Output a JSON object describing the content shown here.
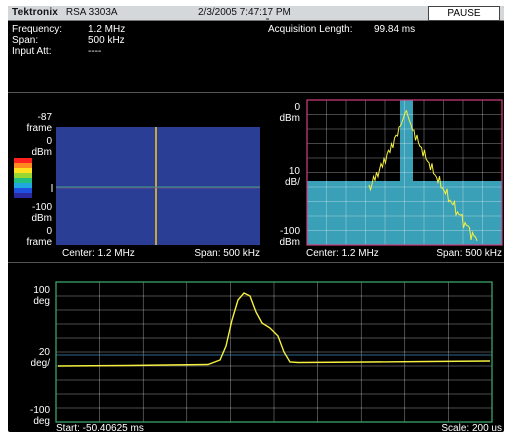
{
  "header": {
    "brand": "Tektronix",
    "model": "RSA 3303A",
    "datetime": "2/3/2005 7:47:17 PM",
    "pause_label": "PAUSE"
  },
  "info": {
    "frequency_label": "Frequency:",
    "frequency_value": "1.2 MHz",
    "span_label": "Span:",
    "span_value": "500 kHz",
    "input_att_label": "Input Att:",
    "input_att_value": "----",
    "acq_label": "Acquisition Length:",
    "acq_value": "99.84 ms"
  },
  "spectrogram": {
    "y_top_value": "-87",
    "y_top_unit": "frame",
    "scale_top_value": "0",
    "scale_top_unit": "dBm",
    "scale_bottom_value": "-100",
    "scale_bottom_unit": "dBm",
    "y_bottom_value": "0",
    "y_bottom_unit": "frame",
    "center_label": "Center: 1.2 MHz",
    "span_label": "Span: 500 kHz",
    "colors": {
      "background": "#2b3e96",
      "trace_vertical": "#c8a636",
      "trace_horizontal": "#3fa089"
    },
    "colorbar": [
      "#ff2020",
      "#ff8a20",
      "#ffe020",
      "#9ad630",
      "#20c080",
      "#20a8e0",
      "#2050e0",
      "#2a2aa0"
    ]
  },
  "spectrum": {
    "y_top_value": "0",
    "y_top_unit": "dBm",
    "div_value": "10",
    "div_unit": "dB/",
    "y_bottom_value": "-100",
    "y_bottom_unit": "dBm",
    "center_label": "Center: 1.2 MHz",
    "span_label": "Span: 500 kHz",
    "colors": {
      "frame": "#d04080",
      "fill": "#3aa0b8",
      "trace": "#f5f040"
    }
  },
  "phase": {
    "y_top_value": "100",
    "y_top_unit": "deg",
    "div_value": "20",
    "div_unit": "deg/",
    "y_bottom_value": "-100",
    "y_bottom_unit": "deg",
    "start_label": "Start: -50.40625 ms",
    "scale_label": "Scale: 200 us",
    "colors": {
      "frame": "#3fb070",
      "trace": "#f5f040"
    }
  }
}
